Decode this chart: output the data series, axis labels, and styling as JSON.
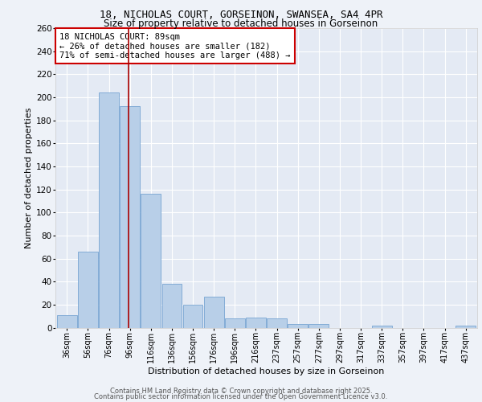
{
  "title_line1": "18, NICHOLAS COURT, GORSEINON, SWANSEA, SA4 4PR",
  "title_line2": "Size of property relative to detached houses in Gorseinon",
  "xlabel": "Distribution of detached houses by size in Gorseinon",
  "ylabel": "Number of detached properties",
  "categories": [
    "36sqm",
    "56sqm",
    "76sqm",
    "96sqm",
    "116sqm",
    "136sqm",
    "156sqm",
    "176sqm",
    "196sqm",
    "216sqm",
    "237sqm",
    "257sqm",
    "277sqm",
    "297sqm",
    "317sqm",
    "337sqm",
    "357sqm",
    "397sqm",
    "417sqm",
    "437sqm"
  ],
  "values": [
    11,
    66,
    204,
    192,
    116,
    38,
    20,
    27,
    8,
    9,
    8,
    3,
    3,
    0,
    0,
    2,
    0,
    0,
    0,
    2
  ],
  "bar_color": "#b8cfe8",
  "bar_edge_color": "#6699cc",
  "vline_x": 2.93,
  "vline_color": "#aa0000",
  "annotation_title": "18 NICHOLAS COURT: 89sqm",
  "annotation_line2": "← 26% of detached houses are smaller (182)",
  "annotation_line3": "71% of semi-detached houses are larger (488) →",
  "annotation_box_color": "#ffffff",
  "annotation_box_edge": "#cc0000",
  "ylim": [
    0,
    260
  ],
  "yticks": [
    0,
    20,
    40,
    60,
    80,
    100,
    120,
    140,
    160,
    180,
    200,
    220,
    240,
    260
  ],
  "footer_line1": "Contains HM Land Registry data © Crown copyright and database right 2025.",
  "footer_line2": "Contains public sector information licensed under the Open Government Licence v3.0.",
  "bg_color": "#eef2f8",
  "plot_bg_color": "#e4eaf4",
  "grid_color": "#ffffff"
}
